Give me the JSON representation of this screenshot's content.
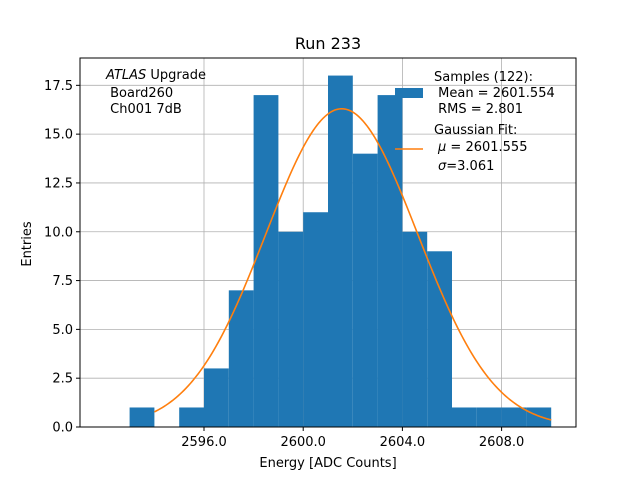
{
  "chart_data": {
    "type": "bar",
    "title": "Run 233",
    "xlabel": "Energy [ADC Counts]",
    "ylabel": "Entries",
    "xlim": [
      2591.0,
      2611.0
    ],
    "ylim": [
      0,
      18.9
    ],
    "grid": true,
    "x_ticks": [
      2596.0,
      2600.0,
      2604.0,
      2608.0
    ],
    "x_tick_labels": [
      "2596.0",
      "2600.0",
      "2604.0",
      "2608.0"
    ],
    "y_ticks": [
      0,
      2.5,
      5,
      7.5,
      10,
      12.5,
      15,
      17.5
    ],
    "y_tick_labels": [
      "0.0",
      "2.5",
      "5.0",
      "7.5",
      "10.0",
      "12.5",
      "15.0",
      "17.5"
    ],
    "histogram": {
      "bin_edges": [
        2593,
        2594,
        2595,
        2596,
        2597,
        2598,
        2599,
        2600,
        2601,
        2602,
        2603,
        2604,
        2605,
        2606,
        2607,
        2608,
        2609,
        2610
      ],
      "counts": [
        1,
        0,
        1,
        3,
        7,
        17,
        10,
        11,
        18,
        14,
        17,
        10,
        9,
        1,
        1,
        1,
        1
      ],
      "color": "#1f77b4"
    },
    "fit_curve": {
      "type": "gaussian",
      "mu": 2601.555,
      "sigma": 3.061,
      "amplitude": 16.3,
      "x_range": [
        2594.0,
        2610.0
      ],
      "color": "#ff7f0e"
    },
    "annotation": {
      "line1_italic": "ATLAS",
      "line1_rest": " Upgrade",
      "line2": " Board260",
      "line3": " Ch001 7dB"
    },
    "legend": {
      "placement": "top-right",
      "samples": {
        "line1": "Samples (122):",
        "line2": " Mean = 2601.554",
        "line3": " RMS = 2.801"
      },
      "fit": {
        "line1": "Gaussian Fit:",
        "line2_symbol": "μ",
        "line2_rest": " = 2601.555",
        "line3_symbol": "σ",
        "line3_rest": "=3.061"
      }
    }
  }
}
